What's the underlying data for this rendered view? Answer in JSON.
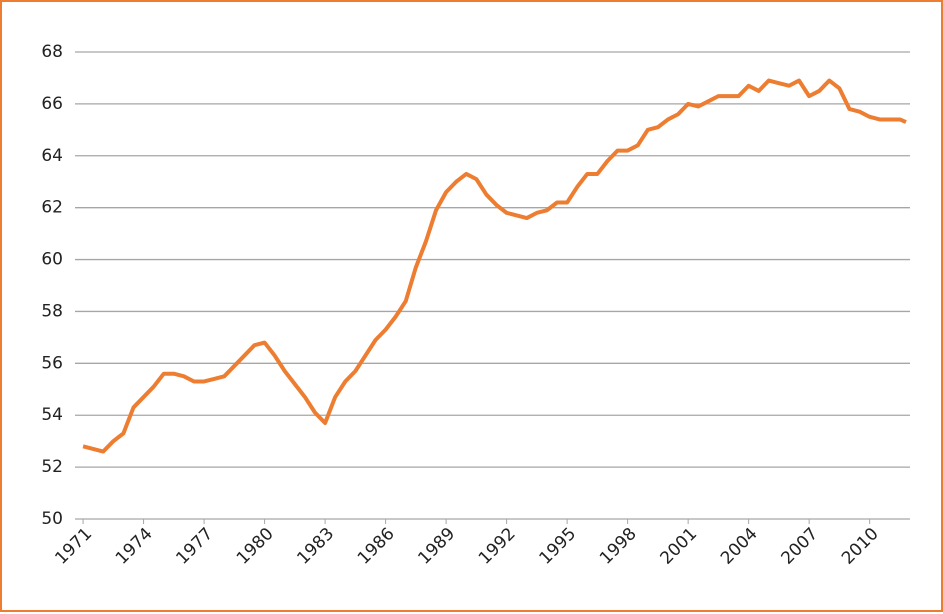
{
  "chart_data": {
    "type": "line",
    "x": [
      1971.0,
      1971.5,
      1972.0,
      1972.5,
      1973.0,
      1973.5,
      1974.0,
      1974.5,
      1975.0,
      1975.5,
      1976.0,
      1976.5,
      1977.0,
      1977.5,
      1978.0,
      1978.5,
      1979.0,
      1979.5,
      1980.0,
      1980.5,
      1981.0,
      1981.5,
      1982.0,
      1982.5,
      1983.0,
      1983.5,
      1984.0,
      1984.5,
      1985.0,
      1985.5,
      1986.0,
      1986.5,
      1987.0,
      1987.5,
      1988.0,
      1988.5,
      1989.0,
      1989.5,
      1990.0,
      1990.5,
      1991.0,
      1991.5,
      1992.0,
      1992.5,
      1993.0,
      1993.5,
      1994.0,
      1994.5,
      1995.0,
      1995.5,
      1996.0,
      1996.5,
      1997.0,
      1997.5,
      1998.0,
      1998.5,
      1999.0,
      1999.5,
      2000.0,
      2000.5,
      2001.0,
      2001.5,
      2002.0,
      2002.5,
      2003.0,
      2003.5,
      2004.0,
      2004.5,
      2005.0,
      2005.5,
      2006.0,
      2006.5,
      2007.0,
      2007.5,
      2008.0,
      2008.5,
      2009.0,
      2009.5,
      2010.0,
      2010.5,
      2011.0,
      2011.5,
      2011.8
    ],
    "series": [
      {
        "color": "#ed7d31",
        "values": [
          52.8,
          52.7,
          52.6,
          53.0,
          53.3,
          54.3,
          54.7,
          55.1,
          55.6,
          55.6,
          55.5,
          55.3,
          55.3,
          55.4,
          55.5,
          55.9,
          56.3,
          56.7,
          56.8,
          56.3,
          55.7,
          55.2,
          54.7,
          54.1,
          53.7,
          54.7,
          55.3,
          55.7,
          56.3,
          56.9,
          57.3,
          57.8,
          58.4,
          59.7,
          60.7,
          61.9,
          62.6,
          63.0,
          63.3,
          63.1,
          62.5,
          62.1,
          61.8,
          61.7,
          61.6,
          61.8,
          61.9,
          62.2,
          62.2,
          62.8,
          63.3,
          63.3,
          63.8,
          64.2,
          64.2,
          64.4,
          65.0,
          65.1,
          65.4,
          65.6,
          66.0,
          65.9,
          66.1,
          66.3,
          66.3,
          66.3,
          66.7,
          66.5,
          66.9,
          66.8,
          66.7,
          66.9,
          66.3,
          66.5,
          66.9,
          66.6,
          65.8,
          65.7,
          65.5,
          65.4,
          65.4,
          65.4,
          65.3
        ]
      }
    ],
    "xlim": [
      1970.6,
      2012.0
    ],
    "xticks": [
      1971,
      1974,
      1977,
      1980,
      1983,
      1986,
      1989,
      1992,
      1995,
      1998,
      2001,
      2004,
      2007,
      2010
    ],
    "ylim": [
      50,
      68
    ],
    "yticks": [
      50,
      52,
      54,
      56,
      58,
      60,
      62,
      64,
      66,
      68
    ],
    "grid": true
  }
}
